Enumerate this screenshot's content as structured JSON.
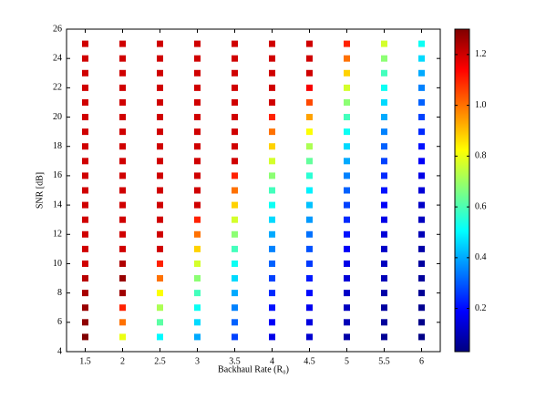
{
  "chart_data": {
    "type": "heatmap",
    "xlabel": "Backhaul Rate (R₀)",
    "ylabel": "SNR [dB]",
    "x": [
      1.5,
      2,
      2.5,
      3,
      3.5,
      4,
      4.5,
      5,
      5.5,
      6
    ],
    "y": [
      5,
      6,
      7,
      8,
      9,
      10,
      11,
      12,
      13,
      14,
      15,
      16,
      17,
      18,
      19,
      20,
      21,
      22,
      23,
      24,
      25
    ],
    "z": [
      [
        1.3,
        1.28,
        1.27,
        1.25,
        1.23,
        1.2,
        1.2,
        1.2,
        1.2,
        1.2,
        1.2,
        1.2,
        1.2,
        1.2,
        1.2,
        1.2,
        1.2,
        1.2,
        1.2,
        1.2,
        1.2
      ],
      [
        0.8,
        1.0,
        1.1,
        1.26,
        1.27,
        1.24,
        1.2,
        1.2,
        1.2,
        1.2,
        1.2,
        1.2,
        1.2,
        1.2,
        1.2,
        1.2,
        1.2,
        1.2,
        1.2,
        1.2,
        1.2
      ],
      [
        0.5,
        0.62,
        0.72,
        0.82,
        1.0,
        1.1,
        1.2,
        1.2,
        1.2,
        1.2,
        1.2,
        1.2,
        1.2,
        1.2,
        1.2,
        1.2,
        1.2,
        1.2,
        1.2,
        1.2,
        1.2
      ],
      [
        0.4,
        0.46,
        0.52,
        0.59,
        0.68,
        0.77,
        0.88,
        1.0,
        1.1,
        1.2,
        1.2,
        1.2,
        1.2,
        1.2,
        1.2,
        1.2,
        1.2,
        1.2,
        1.2,
        1.2,
        1.2
      ],
      [
        0.27,
        0.31,
        0.35,
        0.4,
        0.46,
        0.52,
        0.59,
        0.68,
        0.77,
        0.88,
        1.0,
        1.1,
        1.2,
        1.2,
        1.2,
        1.2,
        1.2,
        1.2,
        1.2,
        1.2,
        1.2
      ],
      [
        0.16,
        0.18,
        0.21,
        0.24,
        0.27,
        0.31,
        0.35,
        0.4,
        0.46,
        0.52,
        0.59,
        0.68,
        0.77,
        0.88,
        1.0,
        1.1,
        1.2,
        1.2,
        1.2,
        1.2,
        1.2
      ],
      [
        0.13,
        0.15,
        0.17,
        0.2,
        0.22,
        0.26,
        0.29,
        0.33,
        0.38,
        0.43,
        0.49,
        0.56,
        0.63,
        0.72,
        0.82,
        0.94,
        1.05,
        1.15,
        1.2,
        1.2,
        1.2
      ],
      [
        0.08,
        0.1,
        0.11,
        0.12,
        0.14,
        0.16,
        0.18,
        0.21,
        0.24,
        0.27,
        0.31,
        0.35,
        0.4,
        0.46,
        0.52,
        0.59,
        0.68,
        0.77,
        0.88,
        1.0,
        1.1
      ],
      [
        0.057,
        0.065,
        0.07,
        0.08,
        0.1,
        0.11,
        0.12,
        0.14,
        0.16,
        0.18,
        0.21,
        0.24,
        0.27,
        0.31,
        0.35,
        0.4,
        0.46,
        0.52,
        0.59,
        0.68,
        0.77
      ],
      [
        0.039,
        0.044,
        0.05,
        0.057,
        0.065,
        0.07,
        0.08,
        0.1,
        0.11,
        0.12,
        0.14,
        0.16,
        0.18,
        0.21,
        0.24,
        0.27,
        0.31,
        0.35,
        0.4,
        0.46,
        0.52
      ]
    ],
    "xlim": [
      1.25,
      6.25
    ],
    "xticks": [
      1.5,
      2,
      2.5,
      3,
      3.5,
      4,
      4.5,
      5,
      5.5,
      6
    ],
    "ylim": [
      4,
      26
    ],
    "yticks": [
      4,
      6,
      8,
      10,
      12,
      14,
      16,
      18,
      20,
      22,
      24,
      26
    ],
    "colormap": "jet",
    "clim": [
      0.03,
      1.3
    ],
    "cticks": [
      0.2,
      0.4,
      0.6,
      0.8,
      {
        "value": 1,
        "label": "1.0"
      },
      1.2
    ]
  }
}
